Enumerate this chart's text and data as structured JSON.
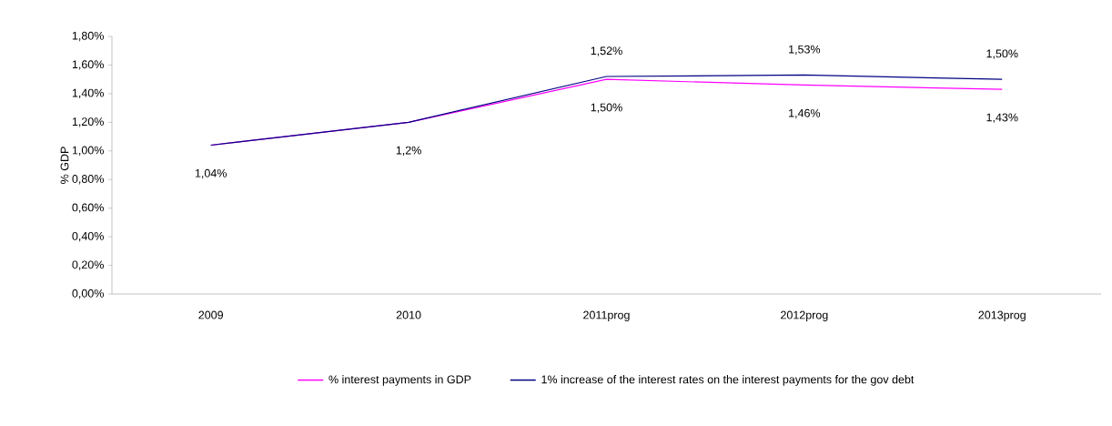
{
  "chart_data": {
    "type": "line",
    "ylabel": "% GDP",
    "categories": [
      "2009",
      "2010",
      "2011prog",
      "2012prog",
      "2013prog"
    ],
    "series": [
      {
        "name": "% interest payments in GDP",
        "color": "#ff00ff",
        "values": [
          1.04,
          1.2,
          1.5,
          1.46,
          1.43
        ],
        "value_labels": [
          "1,04%",
          "1,2%",
          "1,50%",
          "1,46%",
          "1,43%"
        ]
      },
      {
        "name": "1% increase of the interest rates on the interest payments for the gov debt",
        "color": "#000080",
        "values": [
          1.04,
          1.2,
          1.52,
          1.53,
          1.5
        ],
        "value_labels": [
          null,
          null,
          "1,52%",
          "1,53%",
          "1,50%"
        ]
      }
    ],
    "ylim": [
      0,
      1.8
    ],
    "yticks": [
      {
        "value": 0,
        "label": "0,00%"
      },
      {
        "value": 0.2,
        "label": "0,20%"
      },
      {
        "value": 0.4,
        "label": "0,40%"
      },
      {
        "value": 0.6,
        "label": "0,60%"
      },
      {
        "value": 0.8,
        "label": "0,80%"
      },
      {
        "value": 1.0,
        "label": "1,00%"
      },
      {
        "value": 1.2,
        "label": "1,20%"
      },
      {
        "value": 1.4,
        "label": "1,40%"
      },
      {
        "value": 1.6,
        "label": "1,60%"
      },
      {
        "value": 1.8,
        "label": "1,80%"
      }
    ],
    "grid": false,
    "legend": "bottom",
    "marker": "none",
    "line_style": "solid"
  }
}
